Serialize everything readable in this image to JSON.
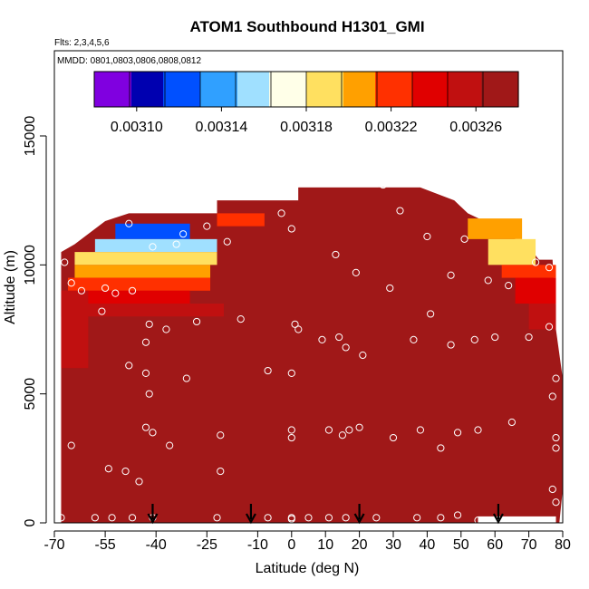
{
  "chart_data": {
    "type": "heatmap",
    "title": "ATOM1 Southbound H1301_GMI",
    "flights_label": "Flts: 2,3,4,5,6",
    "dates_label": "MMDD: 0801,0803,0806,0808,0812",
    "xlabel": "Latitude (deg N)",
    "ylabel": "Altitude (m)",
    "xlim": [
      -70,
      80
    ],
    "ylim": [
      0,
      17500
    ],
    "x_ticks": [
      "-70",
      "-55",
      "-40",
      "-25",
      "-10",
      "0",
      "10",
      "20",
      "30",
      "40",
      "50",
      "60",
      "70",
      "80"
    ],
    "x_tick_values": [
      -70,
      -55,
      -40,
      -25,
      -10,
      0,
      10,
      20,
      30,
      40,
      50,
      60,
      70,
      80
    ],
    "y_ticks": [
      "0",
      "5000",
      "10000",
      "15000"
    ],
    "y_tick_values": [
      0,
      5000,
      10000,
      15000
    ],
    "colorbar": {
      "min": 0.00308,
      "max": 0.00328,
      "tick_labels": [
        "0.00310",
        "0.00314",
        "0.00318",
        "0.00322",
        "0.00326"
      ],
      "tick_values": [
        0.0031,
        0.00314,
        0.00318,
        0.00322,
        0.00326
      ],
      "colors": [
        "#8000e0",
        "#0000b0",
        "#0050ff",
        "#30a0ff",
        "#a0e0ff",
        "#ffffe8",
        "#ffe060",
        "#ffa000",
        "#ff3000",
        "#e00000",
        "#c01010",
        "#a01818"
      ]
    },
    "arrows_latitude": [
      -41,
      -12,
      20,
      61
    ],
    "background_value": 0.00328,
    "layers": [
      {
        "alt": [
          12500,
          13000
        ],
        "lat": [
          25.5,
          26.5
        ],
        "value": 0.00326
      },
      {
        "alt": [
          12000,
          13000
        ],
        "lat": [
          2,
          38
        ],
        "value": 0.00327
      },
      {
        "alt": [
          11500,
          12000
        ],
        "lat": [
          -22,
          -8
        ],
        "value": 0.00322
      },
      {
        "alt": [
          11000,
          11600
        ],
        "lat": [
          -52,
          -30
        ],
        "value": 0.00312
      },
      {
        "alt": [
          10500,
          11000
        ],
        "lat": [
          -58,
          -22
        ],
        "value": 0.00316
      },
      {
        "alt": [
          10000,
          10500
        ],
        "lat": [
          -64,
          -22
        ],
        "value": 0.00318
      },
      {
        "alt": [
          9500,
          10000
        ],
        "lat": [
          -64,
          -24
        ],
        "value": 0.0032
      },
      {
        "alt": [
          9000,
          9500
        ],
        "lat": [
          -66,
          -24
        ],
        "value": 0.00322
      },
      {
        "alt": [
          8500,
          9000
        ],
        "lat": [
          -68,
          -30
        ],
        "value": 0.00324
      },
      {
        "alt": [
          8000,
          8500
        ],
        "lat": [
          -68,
          -20
        ],
        "value": 0.00325
      },
      {
        "alt": [
          11000,
          11800
        ],
        "lat": [
          52,
          68
        ],
        "value": 0.0032
      },
      {
        "alt": [
          10000,
          11000
        ],
        "lat": [
          58,
          72
        ],
        "value": 0.00319
      },
      {
        "alt": [
          9500,
          10000
        ],
        "lat": [
          62,
          78
        ],
        "value": 0.00322
      },
      {
        "alt": [
          8500,
          9500
        ],
        "lat": [
          66,
          78
        ],
        "value": 0.00324
      },
      {
        "alt": [
          7500,
          8500
        ],
        "lat": [
          70,
          78
        ],
        "value": 0.00325
      },
      {
        "alt": [
          6000,
          9000
        ],
        "lat": [
          -68,
          -60
        ],
        "value": 0.00325
      }
    ],
    "samples": [
      {
        "lat": -67,
        "alt": 10100
      },
      {
        "lat": -65,
        "alt": 9300
      },
      {
        "lat": -62,
        "alt": 9000
      },
      {
        "lat": -55,
        "alt": 9100
      },
      {
        "lat": -52,
        "alt": 8900
      },
      {
        "lat": -47,
        "alt": 9000
      },
      {
        "lat": -48,
        "alt": 11600
      },
      {
        "lat": -41,
        "alt": 10700
      },
      {
        "lat": -34,
        "alt": 10800
      },
      {
        "lat": -32,
        "alt": 11200
      },
      {
        "lat": -25,
        "alt": 11500
      },
      {
        "lat": -19,
        "alt": 10900
      },
      {
        "lat": -56,
        "alt": 8200
      },
      {
        "lat": -42,
        "alt": 7700
      },
      {
        "lat": -37,
        "alt": 7500
      },
      {
        "lat": -28,
        "alt": 7800
      },
      {
        "lat": -15,
        "alt": 7900
      },
      {
        "lat": -3,
        "alt": 12000
      },
      {
        "lat": 0,
        "alt": 11400
      },
      {
        "lat": 1,
        "alt": 7700
      },
      {
        "lat": 2,
        "alt": 7500
      },
      {
        "lat": 9,
        "alt": 7100
      },
      {
        "lat": 14,
        "alt": 7200
      },
      {
        "lat": 16,
        "alt": 6800
      },
      {
        "lat": 21,
        "alt": 6500
      },
      {
        "lat": 13,
        "alt": 10400
      },
      {
        "lat": 19,
        "alt": 9700
      },
      {
        "lat": 27,
        "alt": 13100
      },
      {
        "lat": 32,
        "alt": 12100
      },
      {
        "lat": 29,
        "alt": 9100
      },
      {
        "lat": 40,
        "alt": 11100
      },
      {
        "lat": 51,
        "alt": 11000
      },
      {
        "lat": 41,
        "alt": 8100
      },
      {
        "lat": 36,
        "alt": 7100
      },
      {
        "lat": 47,
        "alt": 9600
      },
      {
        "lat": 47,
        "alt": 6900
      },
      {
        "lat": 54,
        "alt": 7100
      },
      {
        "lat": 58,
        "alt": 9400
      },
      {
        "lat": 60,
        "alt": 7200
      },
      {
        "lat": 64,
        "alt": 9200
      },
      {
        "lat": 70,
        "alt": 7200
      },
      {
        "lat": 72,
        "alt": 10100
      },
      {
        "lat": 76,
        "alt": 9900
      },
      {
        "lat": 76,
        "alt": 7600
      },
      {
        "lat": 78,
        "alt": 5600
      },
      {
        "lat": 77,
        "alt": 4900
      },
      {
        "lat": 78,
        "alt": 3300
      },
      {
        "lat": 78,
        "alt": 2900
      },
      {
        "lat": 77,
        "alt": 1300
      },
      {
        "lat": 78,
        "alt": 800
      },
      {
        "lat": 65,
        "alt": 3900
      },
      {
        "lat": 55,
        "alt": 3600
      },
      {
        "lat": 49,
        "alt": 3500
      },
      {
        "lat": 44,
        "alt": 2900
      },
      {
        "lat": 38,
        "alt": 3600
      },
      {
        "lat": 30,
        "alt": 3300
      },
      {
        "lat": 20,
        "alt": 3700
      },
      {
        "lat": 17,
        "alt": 3600
      },
      {
        "lat": 15,
        "alt": 3400
      },
      {
        "lat": 11,
        "alt": 3600
      },
      {
        "lat": 0,
        "alt": 3600
      },
      {
        "lat": 0,
        "alt": 3300
      },
      {
        "lat": -7,
        "alt": 5900
      },
      {
        "lat": 0,
        "alt": 5800
      },
      {
        "lat": -31,
        "alt": 5600
      },
      {
        "lat": -43,
        "alt": 7000
      },
      {
        "lat": -48,
        "alt": 6100
      },
      {
        "lat": -43,
        "alt": 5800
      },
      {
        "lat": -42,
        "alt": 5000
      },
      {
        "lat": -43,
        "alt": 3700
      },
      {
        "lat": -41,
        "alt": 3500
      },
      {
        "lat": -36,
        "alt": 3000
      },
      {
        "lat": -21,
        "alt": 3400
      },
      {
        "lat": -21,
        "alt": 2000
      },
      {
        "lat": -49,
        "alt": 2000
      },
      {
        "lat": -45,
        "alt": 1600
      },
      {
        "lat": -54,
        "alt": 2100
      },
      {
        "lat": -65,
        "alt": 3000
      },
      {
        "lat": -68,
        "alt": 200
      },
      {
        "lat": -58,
        "alt": 200
      },
      {
        "lat": -53,
        "alt": 200
      },
      {
        "lat": -47,
        "alt": 200
      },
      {
        "lat": -41,
        "alt": 200
      },
      {
        "lat": -22,
        "alt": 200
      },
      {
        "lat": -7,
        "alt": 200
      },
      {
        "lat": 0,
        "alt": 200
      },
      {
        "lat": 0,
        "alt": 150
      },
      {
        "lat": 5,
        "alt": 200
      },
      {
        "lat": 11,
        "alt": 200
      },
      {
        "lat": 16,
        "alt": 200
      },
      {
        "lat": 25,
        "alt": 200
      },
      {
        "lat": 37,
        "alt": 200
      },
      {
        "lat": 44,
        "alt": 200
      },
      {
        "lat": 49,
        "alt": 300
      },
      {
        "lat": 55,
        "alt": 100
      },
      {
        "lat": 62,
        "alt": 100
      }
    ]
  }
}
